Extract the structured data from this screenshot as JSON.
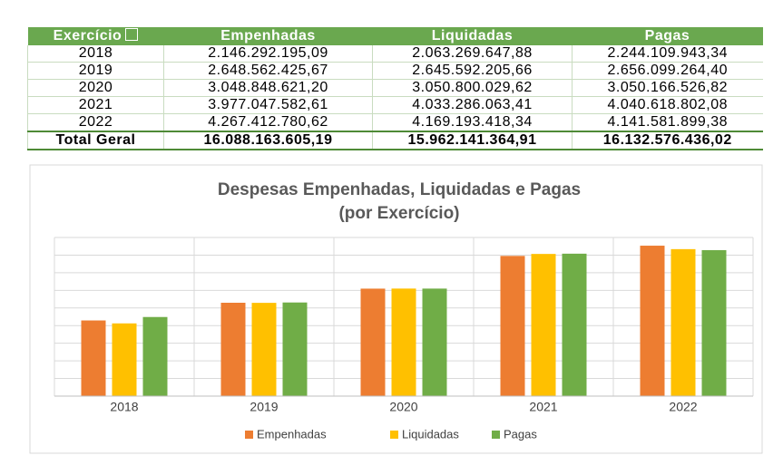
{
  "table": {
    "header": [
      "Exercício",
      "Empenhadas",
      "Liquidadas",
      "Pagas"
    ],
    "rows": [
      [
        "2018",
        "2.146.292.195,09",
        "2.063.269.647,88",
        "2.244.109.943,34"
      ],
      [
        "2019",
        "2.648.562.425,67",
        "2.645.592.205,66",
        "2.656.099.264,40"
      ],
      [
        "2020",
        "3.048.848.621,20",
        "3.050.800.029,62",
        "3.050.166.526,82"
      ],
      [
        "2021",
        "3.977.047.582,61",
        "4.033.286.063,41",
        "4.040.618.802,08"
      ],
      [
        "2022",
        "4.267.412.780,62",
        "4.169.193.418,34",
        "4.141.581.899,38"
      ]
    ],
    "total": [
      "Total Geral",
      "16.088.163.605,19",
      "15.962.141.364,91",
      "16.132.576.436,02"
    ]
  },
  "chart_data": {
    "type": "bar",
    "title": [
      "Despesas Empenhadas, Liquidadas e Pagas",
      "(por Exercício)"
    ],
    "categories": [
      "2018",
      "2019",
      "2020",
      "2021",
      "2022"
    ],
    "series": [
      {
        "name": "Empenhadas",
        "color": "#ed7d31",
        "values": [
          2146292195.09,
          2648562425.67,
          3048848621.2,
          3977047582.61,
          4267412780.62
        ]
      },
      {
        "name": "Liquidadas",
        "color": "#ffc000",
        "values": [
          2063269647.88,
          2645592205.66,
          3050800029.62,
          4033286063.41,
          4169193418.34
        ]
      },
      {
        "name": "Pagas",
        "color": "#70ad47",
        "values": [
          2244109943.34,
          2656099264.4,
          3050166526.82,
          4040618802.08,
          4141581899.38
        ]
      }
    ],
    "ylim": [
      0,
      4500000000
    ],
    "yticks": [
      0,
      500000000,
      1000000000,
      1500000000,
      2000000000,
      2500000000,
      3000000000,
      3500000000,
      4000000000,
      4500000000
    ],
    "grid": true,
    "legend": "bottom"
  }
}
